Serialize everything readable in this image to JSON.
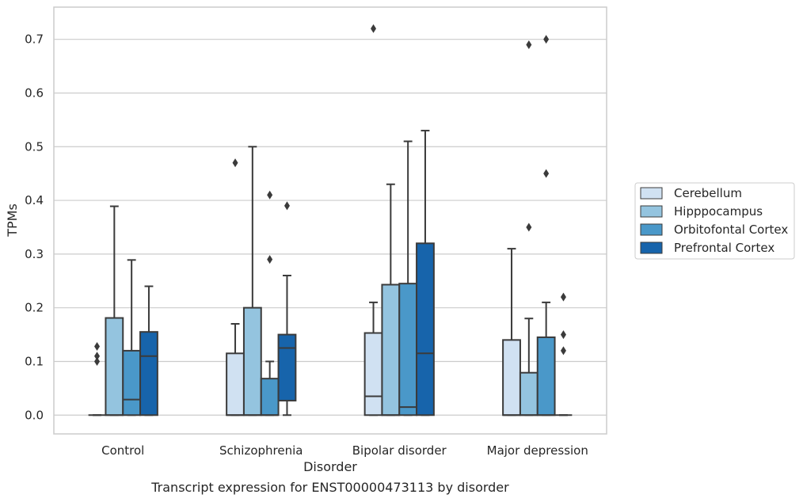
{
  "footer_caption": "Transcript expression for ENST00000473113 by disorder",
  "chart_data": {
    "type": "boxplot",
    "xlabel": "Disorder",
    "ylabel": "TPMs",
    "ylim": [
      -0.035,
      0.76
    ],
    "y_ticks": [
      0.0,
      0.1,
      0.2,
      0.3,
      0.4,
      0.5,
      0.6,
      0.7
    ],
    "y_tick_labels": [
      "0.0",
      "0.1",
      "0.2",
      "0.3",
      "0.4",
      "0.5",
      "0.6",
      "0.7"
    ],
    "grid": "horizontal",
    "legend_placement": "right, outside",
    "categories": [
      "Control",
      "Schizophrenia",
      "Bipolar disorder",
      "Major depression"
    ],
    "series": [
      {
        "name": "Cerebellum",
        "color": "#d0e1f2",
        "boxes": [
          {
            "whislo": 0.0,
            "q1": 0.0,
            "med": 0.0,
            "q3": 0.0,
            "whishi": 0.0,
            "fliers": [
              0.1,
              0.11,
              0.128
            ]
          },
          {
            "whislo": 0.0,
            "q1": 0.0,
            "med": 0.0,
            "q3": 0.115,
            "whishi": 0.17,
            "fliers": [
              0.47
            ]
          },
          {
            "whislo": 0.0,
            "q1": 0.0,
            "med": 0.035,
            "q3": 0.153,
            "whishi": 0.21,
            "fliers": [
              0.72
            ]
          },
          {
            "whislo": 0.0,
            "q1": 0.0,
            "med": 0.0,
            "q3": 0.14,
            "whishi": 0.31,
            "fliers": []
          }
        ]
      },
      {
        "name": "Hipppocampus",
        "color": "#94c4df",
        "boxes": [
          {
            "whislo": 0.0,
            "q1": 0.0,
            "med": 0.0,
            "q3": 0.181,
            "whishi": 0.389,
            "fliers": []
          },
          {
            "whislo": 0.0,
            "q1": 0.0,
            "med": 0.0,
            "q3": 0.2,
            "whishi": 0.5,
            "fliers": []
          },
          {
            "whislo": 0.0,
            "q1": 0.0,
            "med": 0.0,
            "q3": 0.243,
            "whishi": 0.43,
            "fliers": []
          },
          {
            "whislo": 0.0,
            "q1": 0.0,
            "med": 0.0,
            "q3": 0.079,
            "whishi": 0.18,
            "fliers": [
              0.35,
              0.69
            ]
          }
        ]
      },
      {
        "name": "Orbitofontal Cortex",
        "color": "#4a98c9",
        "boxes": [
          {
            "whislo": 0.0,
            "q1": 0.0,
            "med": 0.029,
            "q3": 0.12,
            "whishi": 0.289,
            "fliers": []
          },
          {
            "whislo": 0.0,
            "q1": 0.0,
            "med": 0.0,
            "q3": 0.068,
            "whishi": 0.1,
            "fliers": [
              0.29,
              0.41
            ]
          },
          {
            "whislo": 0.0,
            "q1": 0.0,
            "med": 0.015,
            "q3": 0.245,
            "whishi": 0.51,
            "fliers": []
          },
          {
            "whislo": 0.0,
            "q1": 0.0,
            "med": 0.0,
            "q3": 0.145,
            "whishi": 0.21,
            "fliers": [
              0.45,
              0.7
            ]
          }
        ]
      },
      {
        "name": "Prefrontal Cortex",
        "color": "#1764ab",
        "boxes": [
          {
            "whislo": 0.0,
            "q1": 0.0,
            "med": 0.11,
            "q3": 0.155,
            "whishi": 0.24,
            "fliers": []
          },
          {
            "whislo": 0.0,
            "q1": 0.027,
            "med": 0.125,
            "q3": 0.15,
            "whishi": 0.26,
            "fliers": [
              0.39
            ]
          },
          {
            "whislo": 0.0,
            "q1": 0.0,
            "med": 0.115,
            "q3": 0.32,
            "whishi": 0.53,
            "fliers": []
          },
          {
            "whislo": 0.0,
            "q1": 0.0,
            "med": 0.0,
            "q3": 0.0,
            "whishi": 0.0,
            "fliers": [
              0.12,
              0.15,
              0.22
            ]
          }
        ]
      }
    ]
  }
}
